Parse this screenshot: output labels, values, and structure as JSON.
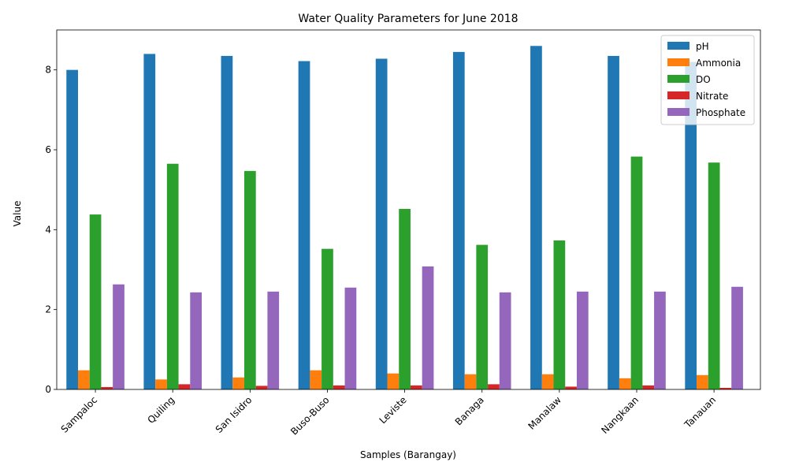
{
  "chart_data": {
    "type": "bar",
    "title": "Water Quality Parameters for June 2018",
    "xlabel": "Samples (Barangay)",
    "ylabel": "Value",
    "ylim": [
      0,
      9
    ],
    "yticks": [
      0,
      2,
      4,
      6,
      8
    ],
    "grid": false,
    "legend_position": "top-right",
    "categories": [
      "Sampaloc",
      "Quiling",
      "San Isidro",
      "Buso-Buso",
      "Leviste",
      "Banaga",
      "Manalaw",
      "Nangkaan",
      "Tanauan"
    ],
    "series": [
      {
        "name": "pH",
        "color": "#1f77b4",
        "values": [
          8.0,
          8.4,
          8.35,
          8.22,
          8.28,
          8.45,
          8.6,
          8.35,
          8.2
        ]
      },
      {
        "name": "Ammonia",
        "color": "#ff7f0e",
        "values": [
          0.48,
          0.25,
          0.3,
          0.48,
          0.4,
          0.38,
          0.38,
          0.28,
          0.36
        ]
      },
      {
        "name": "DO",
        "color": "#2ca02c",
        "values": [
          4.38,
          5.65,
          5.47,
          3.52,
          4.52,
          3.62,
          3.73,
          5.83,
          5.68
        ]
      },
      {
        "name": "Nitrate",
        "color": "#d62728",
        "values": [
          0.06,
          0.13,
          0.09,
          0.1,
          0.1,
          0.13,
          0.07,
          0.1,
          0.04
        ]
      },
      {
        "name": "Phosphate",
        "color": "#9467bd",
        "values": [
          2.63,
          2.43,
          2.45,
          2.55,
          3.08,
          2.43,
          2.45,
          2.45,
          2.57
        ]
      }
    ]
  }
}
